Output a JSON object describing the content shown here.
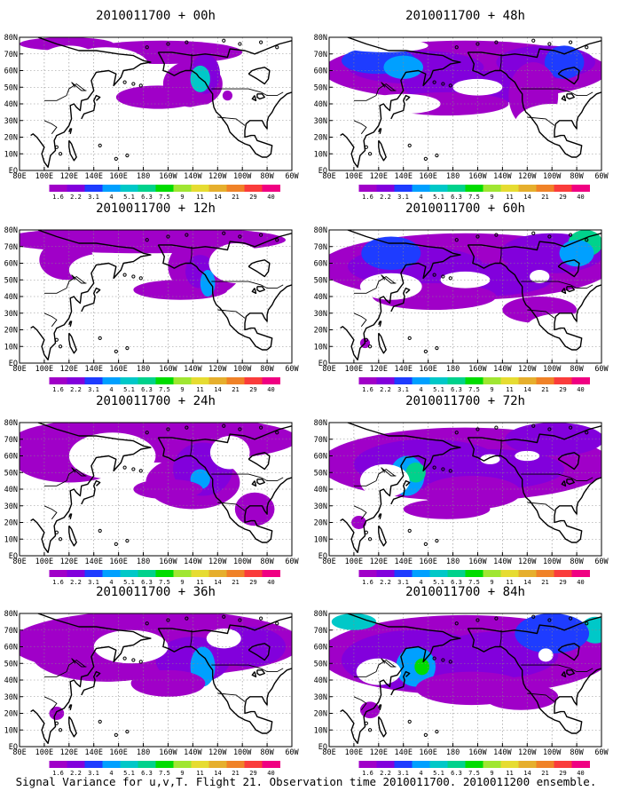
{
  "figure": {
    "caption": "Signal Variance for u,v,T. Flight 21. Observation time 2010011700. 2010011200 ensemble."
  },
  "axes": {
    "x_ticks": [
      "80E",
      "100E",
      "120E",
      "140E",
      "160E",
      "180",
      "160W",
      "140W",
      "120W",
      "100W",
      "80W",
      "60W"
    ],
    "y_ticks": [
      "EQ",
      "10N",
      "20N",
      "30N",
      "40N",
      "50N",
      "60N",
      "70N",
      "80N"
    ]
  },
  "colorbar": {
    "labels": [
      "1.6",
      "2.2",
      "3.1",
      "4",
      "5.1",
      "6.3",
      "7.5",
      "9",
      "11",
      "14",
      "21",
      "29",
      "40"
    ],
    "colors": [
      "#a000c8",
      "#8200dc",
      "#1e3cff",
      "#00a0ff",
      "#00c8c8",
      "#00d28c",
      "#00dc00",
      "#a0e632",
      "#e6dc32",
      "#e6af2d",
      "#f08228",
      "#fa3c3c",
      "#f00082"
    ]
  },
  "panels": [
    {
      "title": "2010011700 + 00h",
      "lead_hours": 0
    },
    {
      "title": "2010011700 + 48h",
      "lead_hours": 48
    },
    {
      "title": "2010011700 + 12h",
      "lead_hours": 12
    },
    {
      "title": "2010011700 + 60h",
      "lead_hours": 60
    },
    {
      "title": "2010011700 + 24h",
      "lead_hours": 24
    },
    {
      "title": "2010011700 + 72h",
      "lead_hours": 72
    },
    {
      "title": "2010011700 + 36h",
      "lead_hours": 36
    },
    {
      "title": "2010011700 + 84h",
      "lead_hours": 84
    }
  ]
}
